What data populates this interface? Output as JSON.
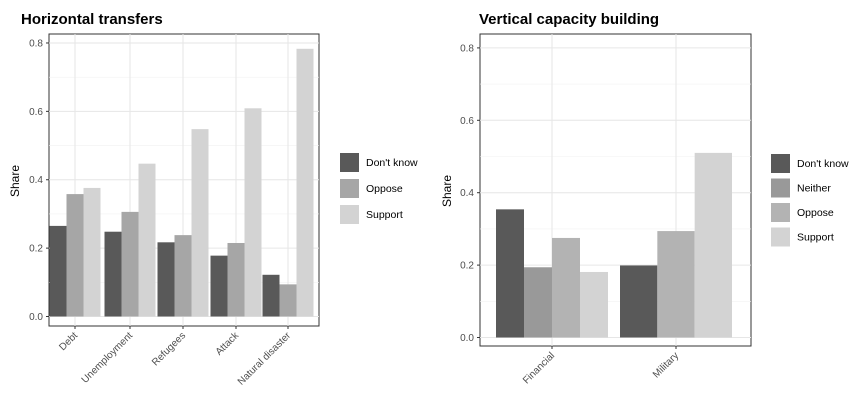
{
  "chart_data": [
    {
      "type": "bar",
      "title": "Horizontal transfers",
      "ylabel": "Share",
      "xlabel": "",
      "ylim": [
        0,
        0.82
      ],
      "yticks": [
        "0.0",
        "0.2",
        "0.4",
        "0.6",
        "0.8"
      ],
      "ytick_values": [
        0,
        0.2,
        0.4,
        0.6,
        0.8
      ],
      "grid": true,
      "legend_position": "right",
      "categories": [
        "Debt",
        "Unemployment",
        "Refugees",
        "Attack",
        "Natural disaster"
      ],
      "series": [
        {
          "name": "Don't know",
          "color": "#595959",
          "values": [
            0.265,
            0.248,
            0.217,
            0.178,
            0.122
          ]
        },
        {
          "name": "Oppose",
          "color": "#a6a6a6",
          "values": [
            0.358,
            0.306,
            0.238,
            0.215,
            0.094
          ]
        },
        {
          "name": "Support",
          "color": "#d3d3d3",
          "values": [
            0.376,
            0.447,
            0.548,
            0.609,
            0.783
          ]
        }
      ]
    },
    {
      "type": "bar",
      "title": "Vertical capacity building",
      "ylabel": "Share",
      "xlabel": "",
      "ylim": [
        0,
        0.82
      ],
      "yticks": [
        "0.0",
        "0.2",
        "0.4",
        "0.6",
        "0.8"
      ],
      "ytick_values": [
        0,
        0.2,
        0.4,
        0.6,
        0.8
      ],
      "grid": true,
      "legend_position": "right",
      "categories": [
        "Financial",
        "Military"
      ],
      "series": [
        {
          "name": "Don't know",
          "color": "#595959",
          "values": [
            0.354,
            0.199
          ]
        },
        {
          "name": "Neither",
          "color": "#999999",
          "values": [
            0.194,
            null
          ]
        },
        {
          "name": "Oppose",
          "color": "#b3b3b3",
          "values": [
            0.275,
            0.294
          ]
        },
        {
          "name": "Support",
          "color": "#d3d3d3",
          "values": [
            0.181,
            0.51
          ]
        }
      ]
    }
  ]
}
